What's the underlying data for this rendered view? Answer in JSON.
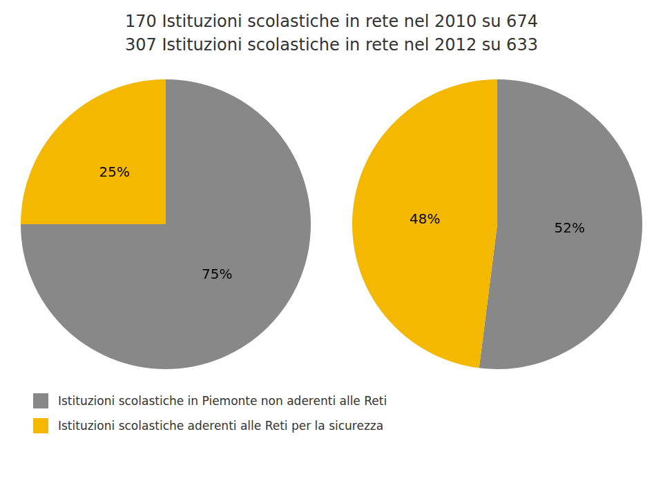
{
  "chart_data": [
    {
      "type": "pie",
      "title": "170 Istituzioni scolastiche in rete nel 2010 su 674",
      "categories": [
        "Istituzioni scolastiche in Piemonte non aderenti alle Reti",
        "Istituzioni scolastiche aderenti alle Reti per la sicurezza"
      ],
      "values": [
        75,
        25
      ],
      "value_labels": [
        "75%",
        "25%"
      ],
      "colors": [
        "#888888",
        "#F5B800"
      ],
      "data_labels": true,
      "legend": "bottom"
    },
    {
      "type": "pie",
      "title": "307 Istituzioni scolastiche in rete nel 2012 su 633",
      "categories": [
        "Istituzioni scolastiche in Piemonte non aderenti alle Reti",
        "Istituzioni scolastiche aderenti alle Reti per la sicurezza"
      ],
      "values": [
        52,
        48
      ],
      "value_labels": [
        "52%",
        "48%"
      ],
      "colors": [
        "#888888",
        "#F5B800"
      ],
      "data_labels": true
    }
  ]
}
